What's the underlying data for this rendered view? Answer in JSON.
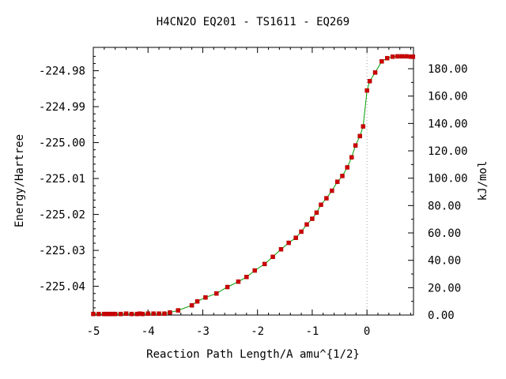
{
  "chart_data": {
    "type": "line",
    "title": "H4CN2O   EQ201 - TS1611 - EQ269",
    "xlabel": "Reaction Path Length/A amu^{1/2}",
    "ylabel": "Energy/Hartree",
    "y2label": "kJ/mol",
    "xlim": [
      -5.0,
      0.85
    ],
    "ylim": [
      -225.048,
      -224.9735
    ],
    "y2lim": [
      0.0,
      195.6
    ],
    "grid": false,
    "legend": "none",
    "x_ticks": [
      "-5",
      "-4",
      "-3",
      "-2",
      "-1",
      "0"
    ],
    "y_ticks": [
      "-224.98",
      "-224.99",
      "-225.00",
      "-225.01",
      "-225.02",
      "-225.03",
      "-225.04"
    ],
    "y2_ticks": [
      "0.00",
      "20.00",
      "40.00",
      "60.00",
      "80.00",
      "100.00",
      "120.00",
      "140.00",
      "160.00",
      "180.00"
    ],
    "ts_x": 0.0,
    "colors": {
      "line": "#00a000",
      "marker": "#cc0000",
      "ts_line": "#a0a0a0",
      "axis": "#000000"
    },
    "series": [
      {
        "x": [
          -5.0,
          -4.9,
          -4.8,
          -4.75,
          -4.7,
          -4.65,
          -4.6,
          -4.5,
          -4.4,
          -4.3,
          -4.2,
          -4.15,
          -4.1,
          -4.0,
          -3.9,
          -3.8,
          -3.7,
          -3.6,
          -3.45,
          -3.2,
          -3.1,
          -2.95,
          -2.75,
          -2.55,
          -2.35,
          -2.2,
          -2.05,
          -1.87,
          -1.72,
          -1.57,
          -1.43,
          -1.3,
          -1.2,
          -1.1,
          -1.0,
          -0.92,
          -0.84,
          -0.74,
          -0.64,
          -0.54,
          -0.45,
          -0.36,
          -0.28,
          -0.21,
          -0.13,
          -0.07,
          0.0,
          0.05,
          0.15,
          0.27,
          0.37,
          0.47,
          0.56,
          0.64,
          0.72,
          0.8,
          0.84
        ],
        "y": [
          -225.0477,
          -225.0477,
          -225.0477,
          -225.0477,
          -225.0477,
          -225.0477,
          -225.0477,
          -225.0477,
          -225.0476,
          -225.0477,
          -225.0477,
          -225.0476,
          -225.0477,
          -225.0476,
          -225.0476,
          -225.0476,
          -225.0476,
          -225.0473,
          -225.0467,
          -225.0453,
          -225.0442,
          -225.0431,
          -225.042,
          -225.0402,
          -225.0387,
          -225.0374,
          -225.0356,
          -225.0338,
          -225.0318,
          -225.0297,
          -225.0279,
          -225.0265,
          -225.0248,
          -225.0228,
          -225.0212,
          -225.0195,
          -225.0173,
          -225.0155,
          -225.0134,
          -225.0109,
          -225.0093,
          -225.0069,
          -225.0041,
          -225.0008,
          -224.9982,
          -224.9955,
          -224.9855,
          -224.9829,
          -224.9805,
          -224.9774,
          -224.9765,
          -224.9761,
          -224.976,
          -224.976,
          -224.976,
          -224.9761,
          -224.9761
        ]
      }
    ]
  }
}
